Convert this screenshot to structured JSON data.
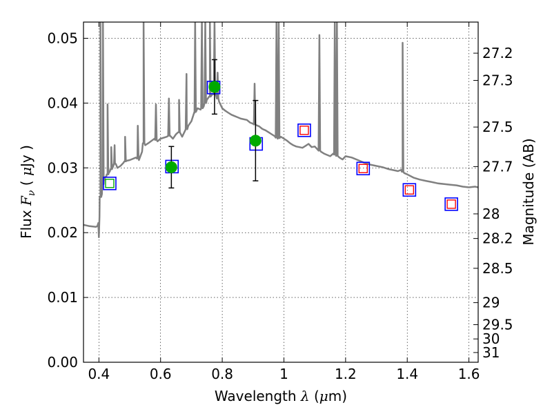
{
  "chart_data": {
    "type": "line",
    "xlabel": "Wavelength  λ (μm)",
    "ylabel": "Flux  F_ν  ( μJy )",
    "ylabel_right": "Magnitude (AB)",
    "xlim": [
      0.35,
      1.63
    ],
    "ylim": [
      0.0,
      0.0525
    ],
    "grid": true,
    "x_ticks": [
      0.4,
      0.6,
      0.8,
      1.0,
      1.2,
      1.4,
      1.6
    ],
    "x_tick_labels": [
      "0.4",
      "0.6",
      "0.8",
      "1",
      "1.2",
      "1.4",
      "1.6"
    ],
    "y_ticks": [
      0.0,
      0.01,
      0.02,
      0.03,
      0.04,
      0.05
    ],
    "y_tick_labels": [
      "0.00",
      "0.01",
      "0.02",
      "0.03",
      "0.04",
      "0.05"
    ],
    "right_ticks": [
      {
        "label": "27.2",
        "flux": 0.0477
      },
      {
        "label": "27.3",
        "flux": 0.0435
      },
      {
        "label": "27.5",
        "flux": 0.0363
      },
      {
        "label": "27.7",
        "flux": 0.0302
      },
      {
        "label": "28",
        "flux": 0.0229
      },
      {
        "label": "28.2",
        "flux": 0.0191
      },
      {
        "label": "28.5",
        "flux": 0.0145
      },
      {
        "label": "29",
        "flux": 0.0092
      },
      {
        "label": "29.5",
        "flux": 0.0058
      },
      {
        "label": "30",
        "flux": 0.0036
      },
      {
        "label": "31",
        "flux": 0.0015
      }
    ],
    "series": [
      {
        "type": "line",
        "color": "#808080",
        "x": [
          0.35,
          0.37,
          0.39,
          0.395,
          0.398,
          0.4,
          0.402,
          0.405,
          0.41,
          0.413,
          0.416,
          0.42,
          0.425,
          0.428,
          0.432,
          0.436,
          0.44,
          0.443,
          0.446,
          0.449,
          0.452,
          0.455,
          0.46,
          0.47,
          0.48,
          0.485,
          0.49,
          0.5,
          0.52,
          0.525,
          0.53,
          0.54,
          0.545,
          0.55,
          0.56,
          0.58,
          0.59,
          0.6,
          0.62,
          0.63,
          0.64,
          0.65,
          0.66,
          0.67,
          0.68,
          0.685,
          0.69,
          0.7,
          0.71,
          0.72,
          0.73,
          0.74,
          0.75,
          0.76,
          0.77,
          0.78,
          0.79,
          0.8,
          0.81,
          0.82,
          0.83,
          0.84,
          0.85,
          0.86,
          0.87,
          0.88,
          0.89,
          0.9,
          0.91,
          0.92,
          0.93,
          0.94,
          0.95,
          0.96,
          0.97,
          0.98,
          0.99,
          1.0,
          1.01,
          1.02,
          1.03,
          1.04,
          1.05,
          1.06,
          1.07,
          1.08,
          1.09,
          1.1,
          1.11,
          1.12,
          1.13,
          1.14,
          1.15,
          1.16,
          1.17,
          1.18,
          1.19,
          1.2,
          1.22,
          1.24,
          1.26,
          1.28,
          1.3,
          1.32,
          1.34,
          1.36,
          1.37,
          1.38,
          1.385,
          1.39,
          1.4,
          1.42,
          1.44,
          1.46,
          1.48,
          1.5,
          1.52,
          1.54,
          1.56,
          1.58,
          1.6,
          1.62,
          1.63
        ],
        "y": [
          0.0212,
          0.021,
          0.0209,
          0.021,
          0.0215,
          0.0193,
          0.0225,
          0.0255,
          0.026,
          0.0275,
          0.028,
          0.0285,
          0.0288,
          0.029,
          0.0292,
          0.0295,
          0.0298,
          0.0299,
          0.0302,
          0.0305,
          0.0307,
          0.0306,
          0.03,
          0.0303,
          0.0308,
          0.031,
          0.0311,
          0.0312,
          0.0316,
          0.0315,
          0.0312,
          0.0325,
          0.0338,
          0.0335,
          0.0338,
          0.0345,
          0.0341,
          0.0345,
          0.0348,
          0.035,
          0.0345,
          0.0352,
          0.0355,
          0.0348,
          0.0358,
          0.036,
          0.0365,
          0.0372,
          0.0385,
          0.0392,
          0.039,
          0.0395,
          0.0405,
          0.041,
          0.0415,
          0.0412,
          0.0402,
          0.0392,
          0.0388,
          0.0385,
          0.0382,
          0.038,
          0.0378,
          0.0376,
          0.0375,
          0.0374,
          0.037,
          0.0368,
          0.0366,
          0.0364,
          0.036,
          0.0358,
          0.0355,
          0.0352,
          0.0349,
          0.0345,
          0.0348,
          0.0345,
          0.0342,
          0.0338,
          0.0335,
          0.0333,
          0.0332,
          0.0331,
          0.0334,
          0.0337,
          0.0332,
          0.0333,
          0.0328,
          0.0325,
          0.0322,
          0.032,
          0.0318,
          0.0322,
          0.0319,
          0.0316,
          0.0313,
          0.0318,
          0.0316,
          0.0312,
          0.0308,
          0.0305,
          0.0303,
          0.0301,
          0.0298,
          0.0296,
          0.0295,
          0.0297,
          0.0294,
          0.0292,
          0.029,
          0.0285,
          0.0282,
          0.028,
          0.0278,
          0.0276,
          0.0275,
          0.0274,
          0.0273,
          0.0271,
          0.027,
          0.0271,
          0.027
        ],
        "spikes": [
          {
            "x": 0.405,
            "y": 0.0525
          },
          {
            "x": 0.413,
            "y": 0.0525
          },
          {
            "x": 0.428,
            "y": 0.0398
          },
          {
            "x": 0.44,
            "y": 0.0332
          },
          {
            "x": 0.451,
            "y": 0.0335
          },
          {
            "x": 0.485,
            "y": 0.0348
          },
          {
            "x": 0.526,
            "y": 0.0365
          },
          {
            "x": 0.545,
            "y": 0.0525
          },
          {
            "x": 0.585,
            "y": 0.0398
          },
          {
            "x": 0.627,
            "y": 0.0407
          },
          {
            "x": 0.66,
            "y": 0.0405
          },
          {
            "x": 0.684,
            "y": 0.0445
          },
          {
            "x": 0.712,
            "y": 0.0525
          },
          {
            "x": 0.734,
            "y": 0.0525
          },
          {
            "x": 0.745,
            "y": 0.0525
          },
          {
            "x": 0.76,
            "y": 0.0525
          },
          {
            "x": 0.775,
            "y": 0.0525
          },
          {
            "x": 0.785,
            "y": 0.0447
          },
          {
            "x": 0.905,
            "y": 0.043
          },
          {
            "x": 0.976,
            "y": 0.0525
          },
          {
            "x": 0.983,
            "y": 0.0525
          },
          {
            "x": 1.115,
            "y": 0.0505
          },
          {
            "x": 1.165,
            "y": 0.0525
          },
          {
            "x": 1.172,
            "y": 0.0525
          },
          {
            "x": 1.385,
            "y": 0.0493
          }
        ]
      },
      {
        "type": "errorbar",
        "marker": "circle",
        "color": "#00aa00",
        "points": [
          {
            "x": 0.635,
            "y": 0.0301,
            "yerr": 0.0032
          },
          {
            "x": 0.775,
            "y": 0.0425,
            "yerr": 0.0042
          },
          {
            "x": 0.908,
            "y": 0.0342,
            "yerr": 0.0062
          }
        ]
      },
      {
        "type": "scatter",
        "marker": "square-blue-outline",
        "color": "#0000ff",
        "points": [
          {
            "x": 0.435,
            "y": 0.0276
          },
          {
            "x": 0.637,
            "y": 0.0302
          },
          {
            "x": 0.772,
            "y": 0.0424
          },
          {
            "x": 0.91,
            "y": 0.0337
          },
          {
            "x": 1.066,
            "y": 0.0358
          },
          {
            "x": 1.257,
            "y": 0.0299
          },
          {
            "x": 1.407,
            "y": 0.0266
          },
          {
            "x": 1.543,
            "y": 0.0244
          }
        ]
      },
      {
        "type": "scatter",
        "marker": "square-inner",
        "points": [
          {
            "x": 0.435,
            "y": 0.0276,
            "color": "#00aa00"
          },
          {
            "x": 1.066,
            "y": 0.0358,
            "color": "#ff0000"
          },
          {
            "x": 1.257,
            "y": 0.0299,
            "color": "#ff0000"
          },
          {
            "x": 1.407,
            "y": 0.0266,
            "color": "#ff0000"
          },
          {
            "x": 1.543,
            "y": 0.0244,
            "color": "#ff0000"
          }
        ]
      }
    ]
  }
}
